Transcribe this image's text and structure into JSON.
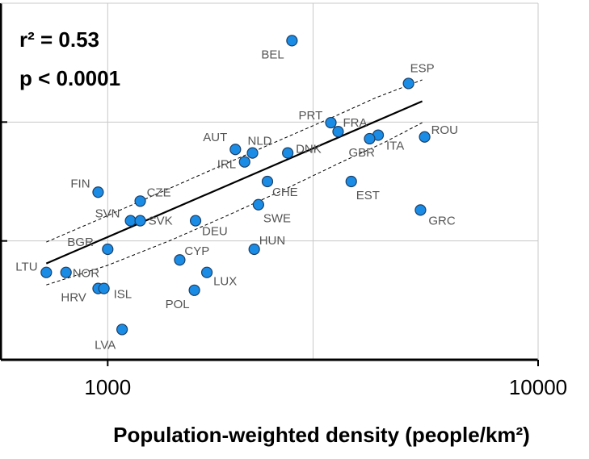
{
  "chart_data": {
    "type": "scatter",
    "title": "",
    "xlabel": "Population-weighted density (people/km²)",
    "ylabel": "",
    "x_scale": "log",
    "xlim": [
      562,
      10000
    ],
    "ylim": [
      0,
      1
    ],
    "x_ticks": [
      1000,
      10000
    ],
    "x_tick_labels": [
      "1000",
      "10000"
    ],
    "grid": true,
    "annotations": {
      "r2": "r² = 0.53",
      "p": "p < 0.0001"
    },
    "colors": {
      "point_fill": "#1a8ce6",
      "point_stroke": "#1c3f66",
      "fit_line": "#000000",
      "grid": "#c8c8c8"
    },
    "fit": {
      "start": [
        720,
        0.27
      ],
      "end": [
        5380,
        0.725
      ]
    },
    "ci_upper": [
      [
        720,
        0.33
      ],
      [
        960,
        0.395
      ],
      [
        1300,
        0.465
      ],
      [
        1800,
        0.54
      ],
      [
        2500,
        0.615
      ],
      [
        3400,
        0.685
      ],
      [
        4200,
        0.735
      ],
      [
        5380,
        0.785
      ]
    ],
    "ci_lower": [
      [
        720,
        0.21
      ],
      [
        1000,
        0.265
      ],
      [
        1400,
        0.335
      ],
      [
        1900,
        0.405
      ],
      [
        2600,
        0.48
      ],
      [
        3500,
        0.555
      ],
      [
        4400,
        0.61
      ],
      [
        5380,
        0.665
      ]
    ],
    "points": [
      {
        "label": "BEL",
        "x": 2680,
        "y": 0.895
      },
      {
        "label": "ESP",
        "x": 5000,
        "y": 0.775
      },
      {
        "label": "PRT",
        "x": 3300,
        "y": 0.665
      },
      {
        "label": "FRA",
        "x": 3430,
        "y": 0.64
      },
      {
        "label": "ROU",
        "x": 5450,
        "y": 0.625
      },
      {
        "label": "ITA",
        "x": 4250,
        "y": 0.63
      },
      {
        "label": "GBR",
        "x": 4060,
        "y": 0.62
      },
      {
        "label": "AUT",
        "x": 1980,
        "y": 0.59
      },
      {
        "label": "NLD",
        "x": 2170,
        "y": 0.58
      },
      {
        "label": "IRL",
        "x": 2080,
        "y": 0.555
      },
      {
        "label": "DNK",
        "x": 2620,
        "y": 0.58
      },
      {
        "label": "FIN",
        "x": 950,
        "y": 0.47
      },
      {
        "label": "CZE",
        "x": 1190,
        "y": 0.445
      },
      {
        "label": "CHE",
        "x": 2350,
        "y": 0.5
      },
      {
        "label": "EST",
        "x": 3680,
        "y": 0.5
      },
      {
        "label": "SVN",
        "x": 1130,
        "y": 0.39
      },
      {
        "label": "SVK",
        "x": 1190,
        "y": 0.39
      },
      {
        "label": "SWE",
        "x": 2240,
        "y": 0.435
      },
      {
        "label": "GRC",
        "x": 5330,
        "y": 0.42
      },
      {
        "label": "DEU",
        "x": 1600,
        "y": 0.39
      },
      {
        "label": "BGR",
        "x": 1000,
        "y": 0.31
      },
      {
        "label": "HUN",
        "x": 2190,
        "y": 0.31
      },
      {
        "label": "CYP",
        "x": 1470,
        "y": 0.28
      },
      {
        "label": "LTU",
        "x": 720,
        "y": 0.245
      },
      {
        "label": "NOR",
        "x": 800,
        "y": 0.245
      },
      {
        "label": "LUX",
        "x": 1700,
        "y": 0.245
      },
      {
        "label": "HRV",
        "x": 950,
        "y": 0.2
      },
      {
        "label": "ISL",
        "x": 980,
        "y": 0.2
      },
      {
        "label": "POL",
        "x": 1590,
        "y": 0.195
      },
      {
        "label": "LVA",
        "x": 1080,
        "y": 0.085
      }
    ]
  }
}
